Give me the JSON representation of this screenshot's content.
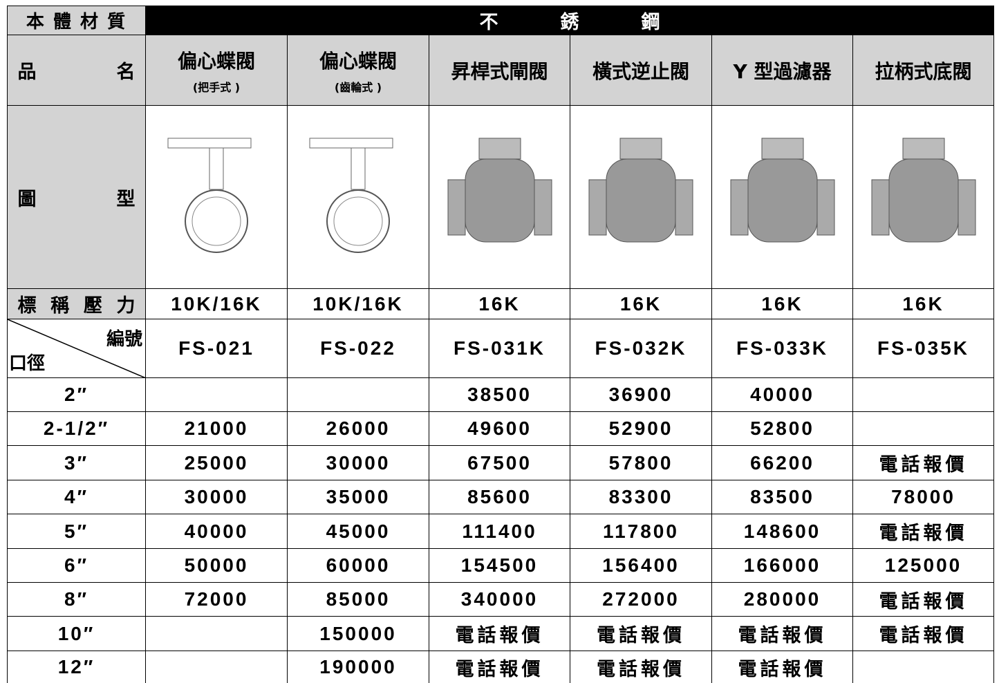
{
  "header": {
    "material_label": "本 體 材 質",
    "material": "不銹鋼",
    "name_label": "品名",
    "image_label": "圖型",
    "pressure_label": "標稱壓力",
    "code_label": "編號",
    "size_label": "口徑"
  },
  "products": [
    {
      "name": "偏心蝶閥",
      "sub": "(把手式 )",
      "pressure": "10K/16K",
      "code": "FS-021"
    },
    {
      "name": "偏心蝶閥",
      "sub": "(齒輪式 )",
      "pressure": "10K/16K",
      "code": "FS-022"
    },
    {
      "name": "昇桿式閘閥",
      "pressure": "16K",
      "code": "FS-031K"
    },
    {
      "name": "橫式逆止閥",
      "pressure": "16K",
      "code": "FS-032K"
    },
    {
      "name": "Y 型過濾器",
      "pressure": "16K",
      "code": "FS-033K"
    },
    {
      "name": "拉柄式底閥",
      "pressure": "16K",
      "code": "FS-035K"
    }
  ],
  "rows": [
    {
      "size": "2″",
      "prices": [
        null,
        null,
        "38500",
        "36900",
        "40000",
        null
      ]
    },
    {
      "size": "2-1/2″",
      "prices": [
        "21000",
        "26000",
        "49600",
        "52900",
        "52800",
        null
      ]
    },
    {
      "size": "3″",
      "prices": [
        "25000",
        "30000",
        "67500",
        "57800",
        "66200",
        "電話報價"
      ]
    },
    {
      "size": "4″",
      "prices": [
        "30000",
        "35000",
        "85600",
        "83300",
        "83500",
        "78000"
      ]
    },
    {
      "size": "5″",
      "prices": [
        "40000",
        "45000",
        "111400",
        "117800",
        "148600",
        "電話報價"
      ]
    },
    {
      "size": "6″",
      "prices": [
        "50000",
        "60000",
        "154500",
        "156400",
        "166000",
        "125000"
      ]
    },
    {
      "size": "8″",
      "prices": [
        "72000",
        "85000",
        "340000",
        "272000",
        "280000",
        "電話報價"
      ]
    },
    {
      "size": "10″",
      "prices": [
        null,
        "150000",
        "電話報價",
        "電話報價",
        "電話報價",
        "電話報價"
      ]
    },
    {
      "size": "12″",
      "prices": [
        null,
        "190000",
        "電話報價",
        "電話報價",
        "電話報價",
        null
      ]
    }
  ]
}
